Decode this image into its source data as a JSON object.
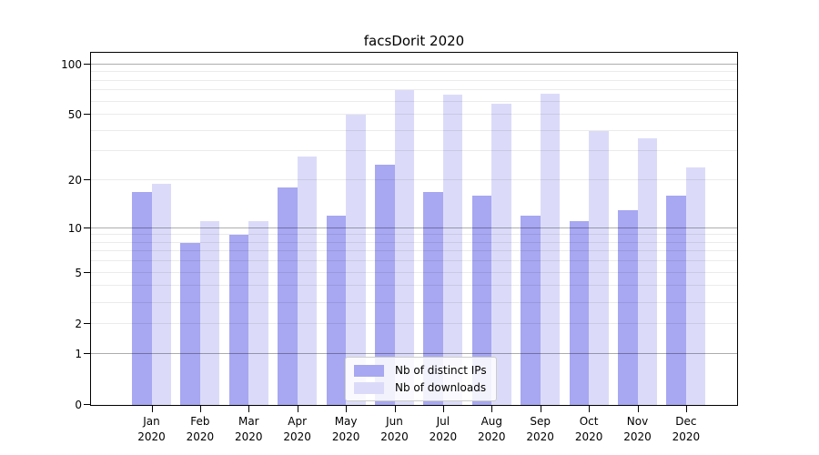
{
  "chart_data": {
    "type": "bar",
    "title": "facsDorit 2020",
    "categories": [
      "Jan 2020",
      "Feb 2020",
      "Mar 2020",
      "Apr 2020",
      "May 2020",
      "Jun 2020",
      "Jul 2020",
      "Aug 2020",
      "Sep 2020",
      "Oct 2020",
      "Nov 2020",
      "Dec 2020"
    ],
    "series": [
      {
        "name": "Nb of distinct IPs",
        "color": "#a7a7f2",
        "values": [
          17,
          8,
          9,
          18,
          12,
          25,
          17,
          16,
          12,
          11,
          13,
          16
        ]
      },
      {
        "name": "Nb of downloads",
        "color": "#dbdbf9",
        "values": [
          19,
          11,
          11,
          28,
          50,
          70,
          66,
          58,
          67,
          40,
          36,
          24
        ]
      }
    ],
    "xlabel": "",
    "ylabel": "",
    "yscale": "symlog-log1p",
    "yticks": [
      0,
      1,
      2,
      5,
      10,
      20,
      50,
      100
    ],
    "ytick_labels": [
      "0",
      "1",
      "2",
      "5",
      "10",
      "20",
      "50",
      "100"
    ],
    "minor_gridlines": [
      2,
      3,
      4,
      5,
      6,
      7,
      8,
      9,
      20,
      30,
      40,
      50,
      60,
      70,
      80,
      90
    ],
    "major_gridlines": [
      1,
      10,
      100
    ],
    "ylim": [
      0,
      117
    ],
    "grid": true,
    "legend_position": "lower center",
    "colors": {
      "spine": "#000000",
      "major_grid": "#aeaeae",
      "minor_grid": "#ececec",
      "legend_border": "#cccccc",
      "background": "#ffffff",
      "text": "#000000"
    }
  }
}
